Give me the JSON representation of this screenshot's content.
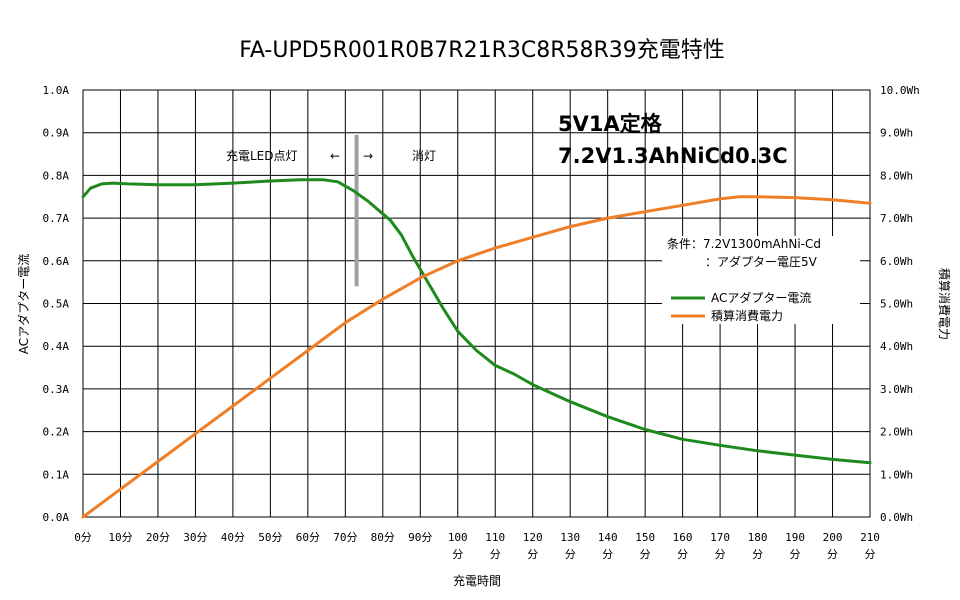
{
  "chart_data": {
    "type": "line",
    "title": "FA-UPD5R001R0B7R21R3C8R58R39充電特性",
    "xlabel": "充電時間",
    "ylabel": "ACアダプター電流",
    "y2label": "積算消費電力",
    "xlim": [
      0,
      210
    ],
    "ylim": [
      0,
      1.0
    ],
    "y2lim": [
      0,
      10.0
    ],
    "grid": true,
    "legend_position": "right",
    "x_ticks": [
      {
        "l1": "0分",
        "l2": ""
      },
      {
        "l1": "10分",
        "l2": ""
      },
      {
        "l1": "20分",
        "l2": ""
      },
      {
        "l1": "30分",
        "l2": ""
      },
      {
        "l1": "40分",
        "l2": ""
      },
      {
        "l1": "50分",
        "l2": ""
      },
      {
        "l1": "60分",
        "l2": ""
      },
      {
        "l1": "70分",
        "l2": ""
      },
      {
        "l1": "80分",
        "l2": ""
      },
      {
        "l1": "90分",
        "l2": ""
      },
      {
        "l1": "100",
        "l2": "分"
      },
      {
        "l1": "110",
        "l2": "分"
      },
      {
        "l1": "120",
        "l2": "分"
      },
      {
        "l1": "130",
        "l2": "分"
      },
      {
        "l1": "140",
        "l2": "分"
      },
      {
        "l1": "150",
        "l2": "分"
      },
      {
        "l1": "160",
        "l2": "分"
      },
      {
        "l1": "170",
        "l2": "分"
      },
      {
        "l1": "180",
        "l2": "分"
      },
      {
        "l1": "190",
        "l2": "分"
      },
      {
        "l1": "200",
        "l2": "分"
      },
      {
        "l1": "210",
        "l2": "分"
      }
    ],
    "y_ticks": [
      "0.0A",
      "0.1A",
      "0.2A",
      "0.3A",
      "0.4A",
      "0.5A",
      "0.6A",
      "0.7A",
      "0.8A",
      "0.9A",
      "1.0A"
    ],
    "y2_ticks": [
      "0.0Wh",
      "1.0Wh",
      "2.0Wh",
      "3.0Wh",
      "4.0Wh",
      "5.0Wh",
      "6.0Wh",
      "7.0Wh",
      "8.0Wh",
      "9.0Wh",
      "10.0Wh"
    ],
    "series": [
      {
        "name": "ACアダプター電流",
        "axis": "left",
        "color": "#1e8a1e",
        "points": [
          [
            0,
            0.75
          ],
          [
            2,
            0.77
          ],
          [
            5,
            0.78
          ],
          [
            8,
            0.782
          ],
          [
            12,
            0.78
          ],
          [
            20,
            0.778
          ],
          [
            30,
            0.778
          ],
          [
            40,
            0.782
          ],
          [
            50,
            0.787
          ],
          [
            58,
            0.79
          ],
          [
            64,
            0.79
          ],
          [
            68,
            0.785
          ],
          [
            72,
            0.765
          ],
          [
            76,
            0.74
          ],
          [
            80,
            0.71
          ],
          [
            82,
            0.695
          ],
          [
            85,
            0.66
          ],
          [
            88,
            0.61
          ],
          [
            92,
            0.55
          ],
          [
            96,
            0.49
          ],
          [
            100,
            0.435
          ],
          [
            105,
            0.39
          ],
          [
            110,
            0.355
          ],
          [
            115,
            0.335
          ],
          [
            120,
            0.31
          ],
          [
            125,
            0.29
          ],
          [
            130,
            0.27
          ],
          [
            140,
            0.235
          ],
          [
            150,
            0.205
          ],
          [
            160,
            0.182
          ],
          [
            170,
            0.168
          ],
          [
            180,
            0.155
          ],
          [
            190,
            0.145
          ],
          [
            200,
            0.135
          ],
          [
            210,
            0.127
          ]
        ]
      },
      {
        "name": "積算消費電力",
        "axis": "right",
        "color": "#f07e26",
        "points": [
          [
            0,
            0.0
          ],
          [
            10,
            0.65
          ],
          [
            20,
            1.3
          ],
          [
            30,
            1.95
          ],
          [
            40,
            2.6
          ],
          [
            50,
            3.25
          ],
          [
            60,
            3.9
          ],
          [
            70,
            4.55
          ],
          [
            80,
            5.1
          ],
          [
            90,
            5.6
          ],
          [
            100,
            6.0
          ],
          [
            110,
            6.3
          ],
          [
            120,
            6.55
          ],
          [
            130,
            6.8
          ],
          [
            140,
            7.0
          ],
          [
            150,
            7.15
          ],
          [
            160,
            7.3
          ],
          [
            170,
            7.45
          ],
          [
            175,
            7.5
          ],
          [
            180,
            7.5
          ],
          [
            190,
            7.48
          ],
          [
            200,
            7.43
          ],
          [
            210,
            7.35
          ]
        ]
      }
    ],
    "annotations": {
      "spec_line1": "5V1A定格",
      "spec_line2": "7.2V1.3AhNiCd0.3C",
      "led_on": "充電LED点灯",
      "arrow_left": "←",
      "arrow_right": "→",
      "led_off": "消灯",
      "condition_line1": "条件：7.2V1300mAhNi-Cd",
      "condition_line2": "：アダプター電圧5V",
      "marker_x": 73,
      "marker_y_top": 0.895,
      "marker_y_bottom": 0.54
    }
  }
}
